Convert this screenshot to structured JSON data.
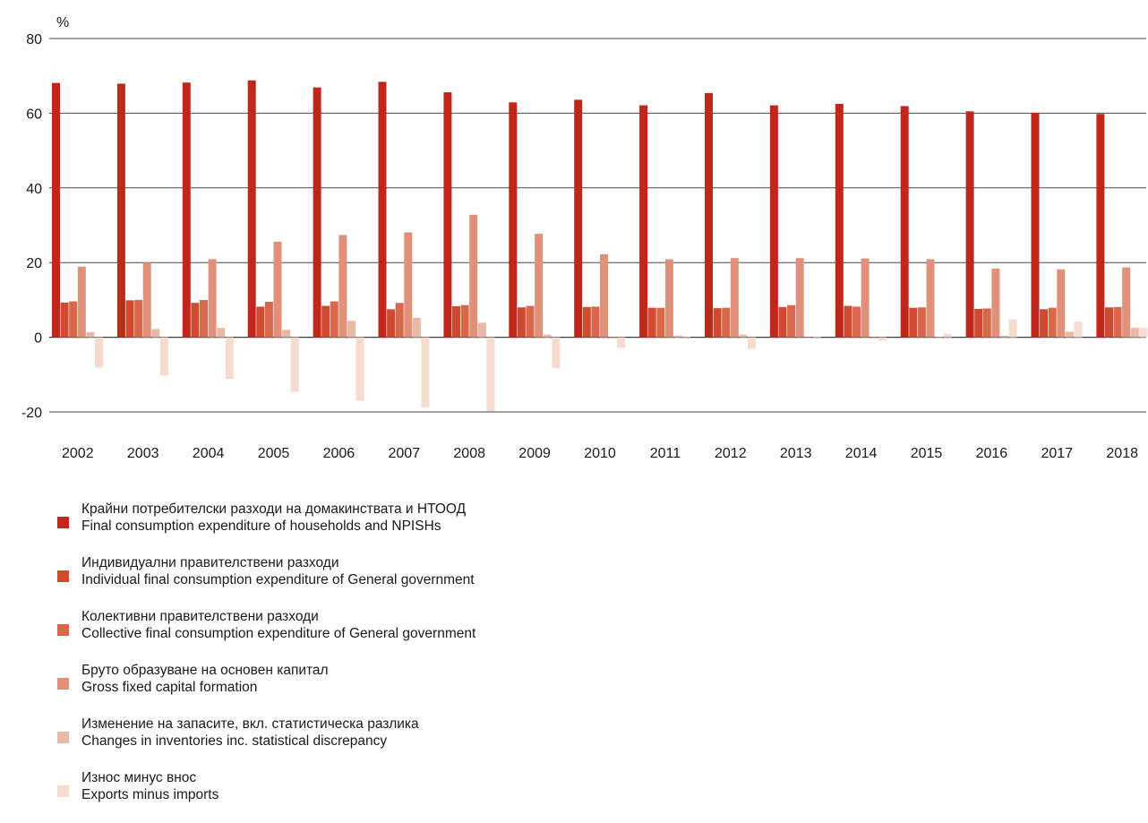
{
  "chart_data": {
    "type": "bar",
    "unit_label": "%",
    "ylim": [
      -20,
      80
    ],
    "yticks": [
      -20,
      0,
      20,
      40,
      60,
      80
    ],
    "ytick_labels": [
      "-20",
      "0",
      "20",
      "40",
      "60",
      "80"
    ],
    "grid": true,
    "legend_placement": "bottom-left",
    "categories": [
      "2002",
      "2003",
      "2004",
      "2005",
      "2006",
      "2007",
      "2008",
      "2009",
      "2010",
      "2011",
      "2012",
      "2013",
      "2014",
      "2015",
      "2016",
      "2017",
      "2018"
    ],
    "series": [
      {
        "name": "Крайни потребителски разходи на домакинствата и НТООД",
        "name_en": "Final consumption expenditure of households and NPISHs",
        "color": "#c0271b",
        "values": [
          68.1,
          67.9,
          68.2,
          68.8,
          66.9,
          68.4,
          65.6,
          62.9,
          63.6,
          62.1,
          65.4,
          62.1,
          62.5,
          61.9,
          60.5,
          60.1,
          59.8
        ]
      },
      {
        "name": "Индивидуални правителствени разходи",
        "name_en": "Individual final consumption expenditure of General government",
        "color": "#cf4a2e",
        "values": [
          9.3,
          9.9,
          9.2,
          8.2,
          8.4,
          7.5,
          8.3,
          8.0,
          8.1,
          7.9,
          7.8,
          8.1,
          8.4,
          7.9,
          7.6,
          7.5,
          8.0
        ]
      },
      {
        "name": "Колективни правителствени разходи",
        "name_en": "Collective final consumption expenditure of General government",
        "color": "#d8674b",
        "values": [
          9.6,
          10.0,
          10.0,
          9.5,
          9.6,
          9.2,
          8.6,
          8.4,
          8.2,
          7.9,
          7.9,
          8.6,
          8.2,
          8.0,
          7.7,
          7.9,
          8.1
        ]
      },
      {
        "name": "Бруто образуване на основен капитал",
        "name_en": "Gross fixed capital formation",
        "color": "#e1917a",
        "values": [
          18.9,
          20.0,
          20.9,
          25.6,
          27.4,
          28.1,
          32.8,
          27.7,
          22.2,
          20.9,
          21.2,
          21.2,
          21.1,
          20.9,
          18.4,
          18.2,
          18.7
        ]
      },
      {
        "name": "Изменение на запасите, вкл. статистическа разлика",
        "name_en": "Changes in inventories inc. statistical discrepancy",
        "color": "#ebb8a5",
        "values": [
          1.4,
          2.2,
          2.5,
          2.0,
          4.4,
          5.2,
          3.9,
          0.7,
          -0.1,
          0.4,
          0.7,
          -0.2,
          -0.3,
          0.1,
          0.4,
          1.5,
          2.5
        ]
      },
      {
        "name": "Износ минус внос",
        "name_en": "Exports minus imports",
        "color": "#f6dccf",
        "values": [
          -8.1,
          -10.2,
          -11.2,
          -14.6,
          -17.0,
          -18.8,
          -19.8,
          -8.3,
          -2.9,
          0.2,
          -3.1,
          0.1,
          -0.9,
          0.9,
          4.8,
          4.2,
          2.5
        ]
      }
    ]
  }
}
